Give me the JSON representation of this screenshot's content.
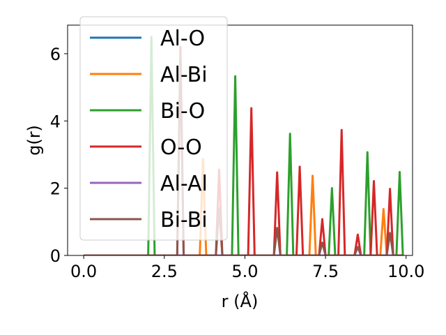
{
  "chart_data": {
    "type": "line",
    "xlabel": "r (Å)",
    "ylabel": "g(r)",
    "xlim": [
      -0.5,
      10.2
    ],
    "ylim": [
      0,
      6.85
    ],
    "xticks": [
      "0.0",
      "2.5",
      "5.0",
      "7.5",
      "10.0"
    ],
    "yticks": [
      "0",
      "2",
      "4",
      "6"
    ],
    "legend_position": "upper-left",
    "series": [
      {
        "name": "Al-O",
        "color": "#1f77b4",
        "x": [
          0.0,
          9.9
        ],
        "y": [
          0,
          0
        ]
      },
      {
        "name": "Al-Bi",
        "color": "#ff7f0e",
        "x": [
          0.0,
          3.6,
          3.7,
          3.8,
          6.0,
          7.0,
          7.1,
          7.2,
          9.2,
          9.3,
          9.4,
          9.9
        ],
        "y": [
          0,
          0,
          2.87,
          0,
          0,
          0,
          2.37,
          0,
          0,
          1.38,
          0,
          0
        ]
      },
      {
        "name": "Bi-O",
        "color": "#2ca02c",
        "x": [
          0.0,
          2.0,
          2.1,
          2.2,
          4.6,
          4.7,
          4.8,
          6.3,
          6.4,
          6.5,
          7.6,
          7.7,
          7.8,
          8.7,
          8.8,
          8.9,
          9.7,
          9.8,
          9.9
        ],
        "y": [
          0,
          0,
          6.5,
          0,
          0,
          5.33,
          0,
          0,
          3.62,
          0,
          0,
          2.0,
          0,
          0,
          3.07,
          0,
          0,
          2.48,
          0
        ]
      },
      {
        "name": "O-O",
        "color": "#d62728",
        "x": [
          0.0,
          2.9,
          3.0,
          3.1,
          4.1,
          4.2,
          4.3,
          5.1,
          5.2,
          5.3,
          5.9,
          6.0,
          6.1,
          6.6,
          6.7,
          6.8,
          7.3,
          7.4,
          7.5,
          7.9,
          8.0,
          8.1,
          8.4,
          8.5,
          8.6,
          8.9,
          9.0,
          9.1,
          9.4,
          9.5,
          9.6,
          9.9
        ],
        "y": [
          0,
          0,
          6.2,
          0,
          0,
          2.55,
          0,
          0,
          4.38,
          0,
          0,
          2.47,
          0,
          0,
          2.64,
          0,
          0,
          1.08,
          0,
          0,
          3.73,
          0,
          0,
          0.62,
          0,
          0,
          2.21,
          0,
          0,
          1.98,
          0,
          0
        ]
      },
      {
        "name": "Al-Al",
        "color": "#9467bd",
        "x": [
          0.0,
          9.9
        ],
        "y": [
          0,
          0
        ]
      },
      {
        "name": "Bi-Bi",
        "color": "#8c564b",
        "x": [
          0.0,
          2.9,
          3.0,
          3.1,
          4.1,
          4.2,
          4.3,
          5.9,
          6.0,
          6.1,
          7.3,
          7.4,
          7.5,
          8.4,
          8.5,
          8.6,
          9.4,
          9.5,
          9.6,
          9.9
        ],
        "y": [
          0,
          0,
          6.0,
          0,
          0,
          1.4,
          0,
          0,
          0.82,
          0,
          0,
          0.38,
          0,
          0,
          0.25,
          0,
          0,
          0.67,
          0,
          0
        ]
      }
    ]
  }
}
